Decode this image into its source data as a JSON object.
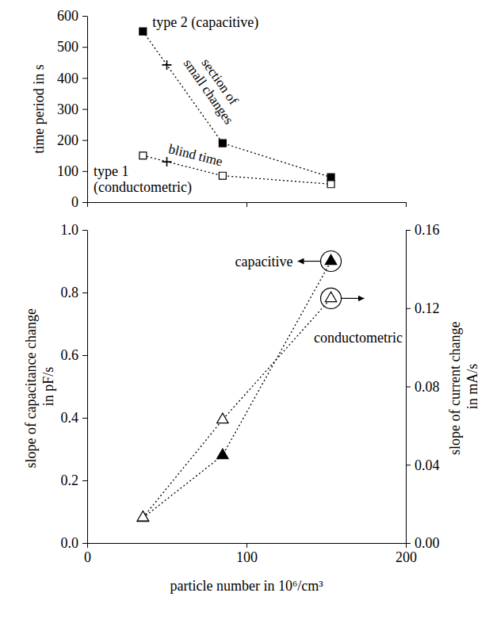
{
  "chart_data": [
    {
      "type": "line",
      "ylabel": "time period in s",
      "xlim": [
        0,
        200
      ],
      "xticks": [
        0,
        100,
        200
      ],
      "ylim": [
        0,
        600
      ],
      "yticks": [
        0,
        100,
        200,
        300,
        400,
        500,
        600
      ],
      "tick_labels": "y",
      "series": [
        {
          "name": "type 2 (capacitive)",
          "color": "#000000",
          "marker": "square",
          "line_style": "dotted",
          "x": [
            35,
            85,
            153
          ],
          "values": [
            550,
            190,
            80
          ]
        },
        {
          "name": "type 1 (conductometric)",
          "color": "#000000",
          "marker": "square-open",
          "line_style": "dotted",
          "x": [
            35,
            85,
            153
          ],
          "values": [
            150,
            85,
            58
          ]
        },
        {
          "type": "scatter",
          "color": "#000000",
          "marker": "plus",
          "x": [
            50,
            50
          ],
          "values": [
            442,
            130
          ]
        }
      ],
      "annotations": [
        {
          "text": "section of small changes",
          "x": 80,
          "y": 370
        },
        {
          "text": "blind time",
          "x": 68,
          "y": 150
        }
      ]
    },
    {
      "type": "line",
      "xlabel": "particle number in 10⁶/cm³",
      "ylabel": "slope of capacitance change in pF/s",
      "y2label": "slope of current change in mA/s",
      "xlim": [
        0,
        200
      ],
      "xticks": [
        0,
        100,
        200
      ],
      "ylim": [
        0,
        1
      ],
      "yticks": [
        {
          "value": 0,
          "label": "0.0"
        },
        {
          "value": 0.2,
          "label": "0.2"
        },
        {
          "value": 0.4,
          "label": "0.4"
        },
        {
          "value": 0.6,
          "label": "0.6"
        },
        {
          "value": 0.8,
          "label": "0.8"
        },
        {
          "value": 1,
          "label": "1.0"
        }
      ],
      "y2lim": [
        0,
        0.16
      ],
      "y2ticks": [
        {
          "value": 0,
          "label": "0.00"
        },
        {
          "value": 0.04,
          "label": "0.04"
        },
        {
          "value": 0.08,
          "label": "0.08"
        },
        {
          "value": 0.12,
          "label": "0.12"
        },
        {
          "value": 0.16,
          "label": "0.16"
        }
      ],
      "series": [
        {
          "name": "capacitive",
          "color": "#000000",
          "marker": "triangle",
          "line_style": "dotted",
          "x": [
            35,
            85,
            153
          ],
          "values": [
            0.08,
            0.28,
            0.9
          ]
        },
        {
          "name": "conductometric",
          "axis": "y2",
          "color": "#000000",
          "marker": "triangle-open",
          "line_style": "dotted",
          "x": [
            35,
            85,
            153
          ],
          "values": [
            0.013,
            0.063,
            0.125
          ]
        }
      ]
    }
  ]
}
